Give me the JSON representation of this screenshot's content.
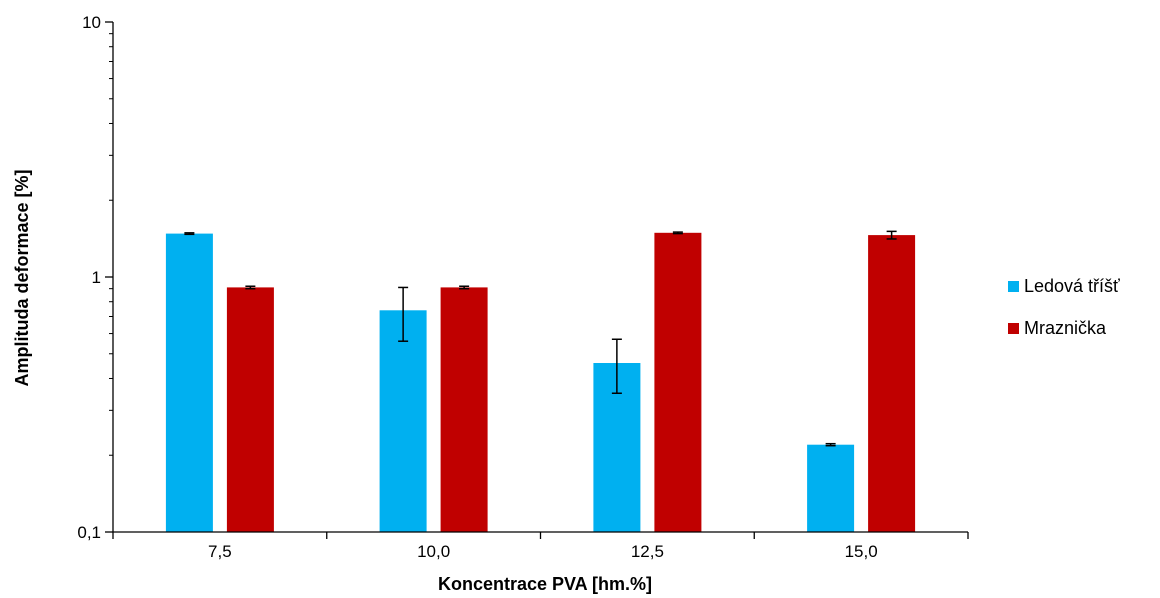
{
  "chart_data": {
    "type": "bar",
    "title": "",
    "xlabel": "Koncentrace PVA [hm.%]",
    "ylabel": "Amplituda deformace [%]",
    "yscale": "log",
    "ylim": [
      0.1,
      10
    ],
    "yticks": [
      {
        "value": 0.1,
        "label": "0,1"
      },
      {
        "value": 1,
        "label": "1"
      },
      {
        "value": 10,
        "label": "10"
      }
    ],
    "categories": [
      "7,5",
      "10,0",
      "12,5",
      "15,0"
    ],
    "grid": false,
    "legend_position": "right",
    "series": [
      {
        "name": "Ledová tříšť",
        "color": "#00b0f0",
        "values": [
          1.48,
          0.74,
          0.46,
          0.22
        ],
        "error_low": [
          1.47,
          0.56,
          0.35,
          0.218
        ],
        "error_high": [
          1.49,
          0.91,
          0.57,
          0.222
        ]
      },
      {
        "name": "Mraznička",
        "color": "#c00000",
        "values": [
          0.91,
          0.91,
          1.49,
          1.46
        ],
        "error_low": [
          0.9,
          0.9,
          1.48,
          1.41
        ],
        "error_high": [
          0.92,
          0.92,
          1.5,
          1.51
        ]
      }
    ]
  }
}
